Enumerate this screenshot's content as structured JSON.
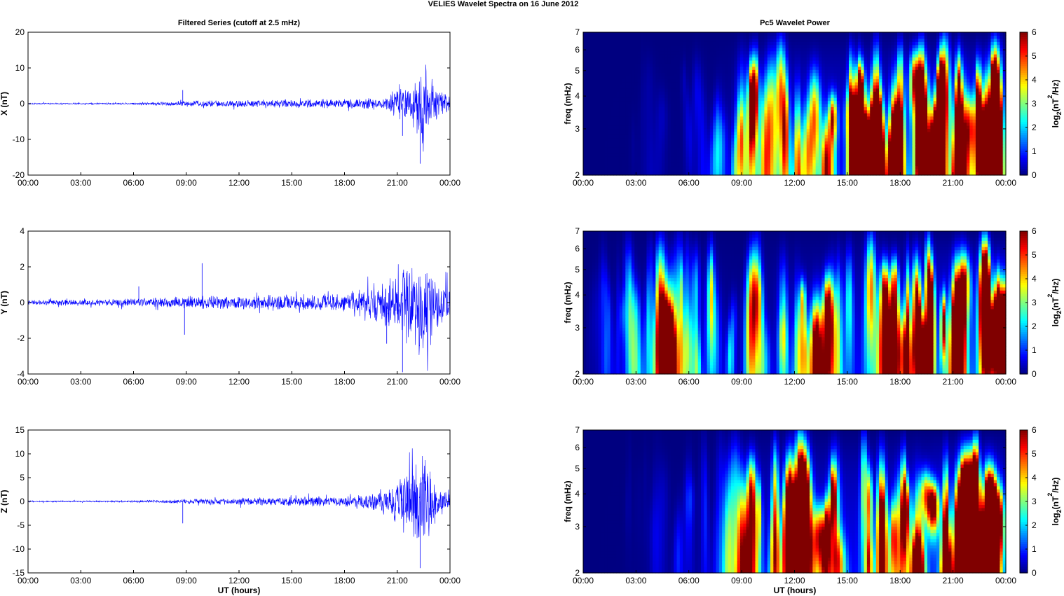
{
  "figure": {
    "title": "VELIES Wavelet Spectra on 16 June      2012",
    "left_title": "Filtered Series (cutoff at 2.5 mHz)",
    "right_title": "Pc5 Wavelet Power",
    "xlabel": "UT (hours)",
    "freq_label": "freq (mHz)",
    "colorbar_label_prefix": "log",
    "colorbar_label_sub": "2",
    "colorbar_label_mid": "(nT",
    "colorbar_label_sup": "2",
    "colorbar_label_suffix": "/Hz)"
  },
  "colors": {
    "trace": "#0000ff",
    "axis": "#000000"
  },
  "chart_data": [
    {
      "type": "line",
      "component": "X",
      "ylabel": "X (nT)",
      "ylim": [
        -20,
        20
      ],
      "yticks": [
        -20,
        -10,
        0,
        10,
        20
      ],
      "xticks": [
        "00:00",
        "03:00",
        "06:00",
        "09:00",
        "12:00",
        "15:00",
        "18:00",
        "21:00",
        "00:00"
      ],
      "xlim_hours": [
        0,
        24
      ],
      "envelope": {
        "hours": [
          0,
          6,
          9.5,
          14,
          18,
          20.4,
          21,
          21.5,
          22,
          22.5,
          23,
          23.5,
          24
        ],
        "amplitude": [
          0.2,
          0.3,
          1.0,
          1.3,
          1.4,
          2.0,
          5.5,
          4.0,
          9.0,
          16.5,
          7.0,
          4.5,
          3.0
        ]
      },
      "spikes": [
        {
          "hour": 8.8,
          "value": 3.8
        },
        {
          "hour": 22.3,
          "value": -16.8
        },
        {
          "hour": 21.3,
          "value": -9.0
        }
      ]
    },
    {
      "type": "line",
      "component": "Y",
      "ylabel": "Y (nT)",
      "ylim": [
        -4,
        4
      ],
      "yticks": [
        -4,
        -2,
        0,
        2,
        4
      ],
      "xticks": [
        "00:00",
        "03:00",
        "06:00",
        "09:00",
        "12:00",
        "15:00",
        "18:00",
        "21:00",
        "00:00"
      ],
      "xlim_hours": [
        0,
        24
      ],
      "envelope": {
        "hours": [
          0,
          3.5,
          6,
          9.5,
          12,
          15,
          18,
          20.4,
          21,
          22,
          22.5,
          23,
          24
        ],
        "amplitude": [
          0.15,
          0.2,
          0.25,
          0.4,
          0.4,
          0.5,
          0.6,
          1.5,
          2.0,
          3.0,
          3.4,
          1.5,
          1.4
        ]
      },
      "spikes": [
        {
          "hour": 6.3,
          "value": 0.9
        },
        {
          "hour": 8.9,
          "value": -1.8
        },
        {
          "hour": 9.9,
          "value": 2.2
        },
        {
          "hour": 20.4,
          "value": -2.3
        },
        {
          "hour": 21.3,
          "value": -3.9
        }
      ]
    },
    {
      "type": "line",
      "component": "Z",
      "ylabel": "Z (nT)",
      "ylim": [
        -15,
        15
      ],
      "yticks": [
        -15,
        -10,
        -5,
        0,
        5,
        10,
        15
      ],
      "xticks": [
        "00:00",
        "03:00",
        "06:00",
        "09:00",
        "12:00",
        "15:00",
        "18:00",
        "21:00",
        "00:00"
      ],
      "xlim_hours": [
        0,
        24
      ],
      "envelope": {
        "hours": [
          0,
          6,
          9.5,
          14,
          18,
          20.4,
          21,
          22,
          22.5,
          23,
          23.5,
          24
        ],
        "amplitude": [
          0.15,
          0.2,
          0.6,
          1.0,
          1.2,
          2.5,
          5.5,
          8.5,
          13.5,
          6.0,
          3.5,
          2.5
        ]
      },
      "spikes": [
        {
          "hour": 8.8,
          "value": -4.6
        },
        {
          "hour": 22.3,
          "value": -14.0
        }
      ]
    },
    {
      "type": "heatmap",
      "component": "X",
      "ylabel": "freq (mHz)",
      "ylim": [
        2,
        7
      ],
      "yscale": "log",
      "yticks": [
        2,
        3,
        4,
        5,
        6,
        7
      ],
      "xticks": [
        "00:00",
        "03:00",
        "06:00",
        "09:00",
        "12:00",
        "15:00",
        "18:00",
        "21:00",
        "00:00"
      ],
      "colorbar": {
        "range": [
          0,
          6
        ],
        "ticks": [
          0,
          1,
          2,
          3,
          4,
          5,
          6
        ],
        "colormap": "jet"
      },
      "activity_hours": [
        0,
        4.2,
        7.8,
        9.5,
        12,
        15,
        18,
        19.7,
        20,
        23.8,
        24
      ],
      "activity_level": [
        0,
        0.15,
        0.6,
        3.5,
        4.3,
        4.5,
        4.6,
        5.5,
        6.5,
        6.8,
        3.0
      ]
    },
    {
      "type": "heatmap",
      "component": "Y",
      "ylabel": "freq (mHz)",
      "ylim": [
        2,
        7
      ],
      "yscale": "log",
      "yticks": [
        2,
        3,
        4,
        5,
        6,
        7
      ],
      "xticks": [
        "00:00",
        "03:00",
        "06:00",
        "09:00",
        "12:00",
        "15:00",
        "18:00",
        "21:00",
        "00:00"
      ],
      "colorbar": {
        "range": [
          0,
          6
        ],
        "ticks": [
          0,
          1,
          2,
          3,
          4,
          5,
          6
        ],
        "colormap": "jet"
      },
      "activity_hours": [
        0,
        3.5,
        4.5,
        5.5,
        9.4,
        9.7,
        10,
        12,
        15,
        16,
        18,
        20,
        22,
        24
      ],
      "activity_level": [
        0,
        1.5,
        3.5,
        2.0,
        0.8,
        5.5,
        1.5,
        2.5,
        2.8,
        3.8,
        4.0,
        5.5,
        6.3,
        5.5
      ]
    },
    {
      "type": "heatmap",
      "component": "Z",
      "ylabel": "freq (mHz)",
      "ylim": [
        2,
        7
      ],
      "yscale": "log",
      "yticks": [
        2,
        3,
        4,
        5,
        6,
        7
      ],
      "xticks": [
        "00:00",
        "03:00",
        "06:00",
        "09:00",
        "12:00",
        "15:00",
        "18:00",
        "21:00",
        "00:00"
      ],
      "colorbar": {
        "range": [
          0,
          6
        ],
        "ticks": [
          0,
          1,
          2,
          3,
          4,
          5,
          6
        ],
        "colormap": "jet"
      },
      "activity_hours": [
        0,
        4.5,
        7.8,
        8.8,
        9.5,
        12,
        15,
        18,
        19.7,
        20,
        23.8,
        24
      ],
      "activity_level": [
        0,
        0.2,
        0.8,
        1.8,
        3.5,
        4.2,
        4.5,
        4.6,
        5.5,
        6.5,
        6.8,
        3.0
      ]
    }
  ]
}
